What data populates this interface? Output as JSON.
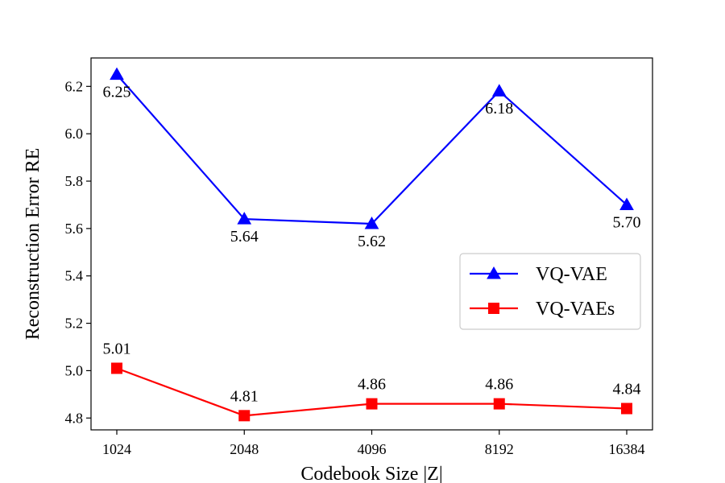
{
  "chart_data": {
    "type": "line",
    "x": [
      "1024",
      "2048",
      "4096",
      "8192",
      "16384"
    ],
    "xlabel": "Codebook Size |Z|",
    "ylabel": "Reconstruction Error RE",
    "ylim": [
      4.75,
      6.32
    ],
    "yticks": [
      "4.8",
      "5.0",
      "5.2",
      "5.4",
      "5.6",
      "5.8",
      "6.0",
      "6.2"
    ],
    "grid": false,
    "legend_position": "center-right",
    "series": [
      {
        "name": "VQ-VAE",
        "values": [
          6.25,
          5.64,
          5.62,
          6.18,
          5.7
        ],
        "labels": [
          "6.25",
          "5.64",
          "5.62",
          "6.18",
          "5.70"
        ],
        "color": "#0000ff",
        "marker": "triangle",
        "label_side": "below"
      },
      {
        "name": "VQ-VAEs",
        "values": [
          5.01,
          4.81,
          4.86,
          4.86,
          4.84
        ],
        "labels": [
          "5.01",
          "4.81",
          "4.86",
          "4.86",
          "4.84"
        ],
        "color": "#ff0000",
        "marker": "square",
        "label_side": "above"
      }
    ]
  }
}
